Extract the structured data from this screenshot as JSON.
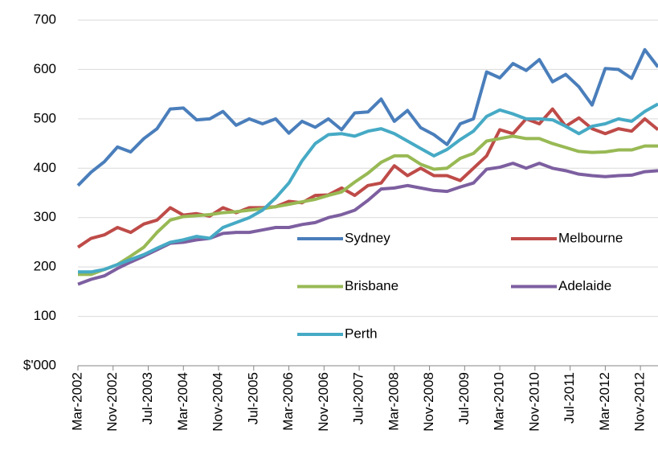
{
  "chart_data": {
    "type": "line",
    "x": [
      "2002-03",
      "2002-06",
      "2002-09",
      "2002-12",
      "2003-03",
      "2003-06",
      "2003-09",
      "2003-12",
      "2004-03",
      "2004-06",
      "2004-09",
      "2004-12",
      "2005-03",
      "2005-06",
      "2005-09",
      "2005-12",
      "2006-03",
      "2006-06",
      "2006-09",
      "2006-12",
      "2007-03",
      "2007-06",
      "2007-09",
      "2007-12",
      "2008-03",
      "2008-06",
      "2008-09",
      "2008-12",
      "2009-03",
      "2009-06",
      "2009-09",
      "2009-12",
      "2010-03",
      "2010-06",
      "2010-09",
      "2010-12",
      "2011-03",
      "2011-06",
      "2011-09",
      "2011-12",
      "2012-03",
      "2012-06",
      "2012-09",
      "2012-12",
      "2013-03"
    ],
    "series": [
      {
        "name": "Sydney",
        "color": "#4a7ebb",
        "values": [
          365,
          392,
          413,
          443,
          433,
          460,
          480,
          520,
          522,
          498,
          500,
          515,
          487,
          500,
          490,
          500,
          471,
          495,
          483,
          500,
          478,
          512,
          514,
          540,
          495,
          517,
          482,
          468,
          448,
          490,
          500,
          595,
          583,
          612,
          598,
          620,
          575,
          590,
          565,
          528,
          602,
          600,
          582,
          640,
          605
        ]
      },
      {
        "name": "Melbourne",
        "color": "#be4b48",
        "values": [
          240,
          258,
          265,
          280,
          270,
          287,
          295,
          320,
          305,
          308,
          303,
          320,
          310,
          320,
          320,
          322,
          333,
          330,
          345,
          346,
          360,
          345,
          365,
          370,
          405,
          385,
          400,
          385,
          385,
          375,
          400,
          425,
          478,
          470,
          500,
          490,
          520,
          485,
          502,
          480,
          470,
          480,
          475,
          500,
          478
        ]
      },
      {
        "name": "Brisbane",
        "color": "#98b954",
        "values": [
          185,
          185,
          195,
          205,
          222,
          240,
          270,
          295,
          302,
          304,
          306,
          310,
          312,
          315,
          318,
          322,
          327,
          332,
          337,
          345,
          352,
          372,
          390,
          412,
          425,
          425,
          408,
          398,
          400,
          420,
          430,
          455,
          460,
          465,
          460,
          460,
          450,
          442,
          434,
          432,
          433,
          437,
          437,
          445,
          445
        ]
      },
      {
        "name": "Adelaide",
        "color": "#7d5fa0",
        "values": [
          165,
          175,
          182,
          197,
          210,
          222,
          235,
          248,
          250,
          255,
          258,
          268,
          270,
          270,
          275,
          280,
          280,
          286,
          290,
          300,
          306,
          315,
          335,
          358,
          360,
          365,
          360,
          355,
          353,
          362,
          370,
          398,
          402,
          410,
          400,
          410,
          400,
          395,
          388,
          385,
          383,
          385,
          386,
          393,
          395
        ]
      },
      {
        "name": "Perth",
        "color": "#46aac5",
        "values": [
          190,
          190,
          195,
          205,
          215,
          225,
          238,
          250,
          255,
          262,
          258,
          280,
          290,
          300,
          315,
          340,
          370,
          415,
          450,
          468,
          470,
          465,
          475,
          480,
          470,
          455,
          440,
          425,
          438,
          458,
          475,
          505,
          518,
          510,
          500,
          500,
          498,
          485,
          470,
          485,
          490,
          500,
          495,
          515,
          530
        ]
      }
    ],
    "xlim": [
      "2002-03",
      "2013-03"
    ],
    "xticks": [
      {
        "value": "2002-03",
        "label": "Mar-2002"
      },
      {
        "value": "2002-11",
        "label": "Nov-2002"
      },
      {
        "value": "2003-07",
        "label": "Jul-2003"
      },
      {
        "value": "2004-03",
        "label": "Mar-2004"
      },
      {
        "value": "2004-11",
        "label": "Nov-2004"
      },
      {
        "value": "2005-07",
        "label": "Jul-2005"
      },
      {
        "value": "2006-03",
        "label": "Mar-2006"
      },
      {
        "value": "2006-11",
        "label": "Nov-2006"
      },
      {
        "value": "2007-07",
        "label": "Jul-2007"
      },
      {
        "value": "2008-03",
        "label": "Mar-2008"
      },
      {
        "value": "2008-11",
        "label": "Nov-2008"
      },
      {
        "value": "2009-07",
        "label": "Jul-2009"
      },
      {
        "value": "2010-03",
        "label": "Mar-2010"
      },
      {
        "value": "2010-11",
        "label": "Nov-2010"
      },
      {
        "value": "2011-07",
        "label": "Jul-2011"
      },
      {
        "value": "2012-03",
        "label": "Mar-2012"
      },
      {
        "value": "2012-11",
        "label": "Nov-2012"
      }
    ],
    "ylim": [
      0,
      700
    ],
    "yticks": [
      {
        "value": 0,
        "label": "$'000"
      },
      100,
      200,
      300,
      400,
      500,
      600,
      700
    ],
    "grid": true
  }
}
